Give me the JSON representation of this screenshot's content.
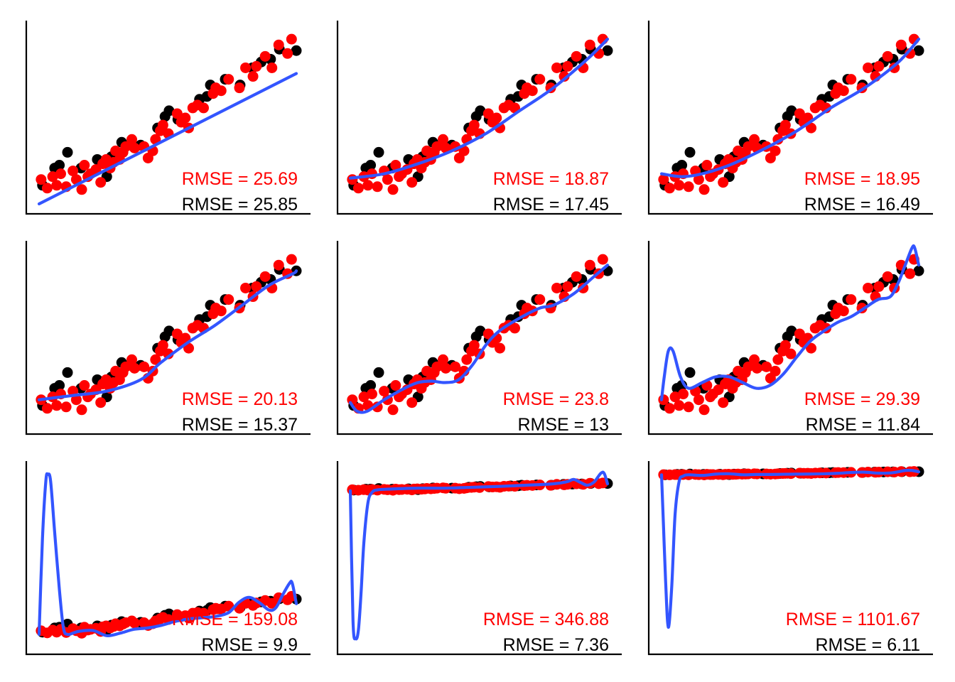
{
  "chart_data": {
    "type": "scatter",
    "layout": "3x3 grid of small multiples, no ticks, no axis labels",
    "colors": {
      "train": "#000000",
      "test": "#ff0000",
      "fit": "#3355ff"
    },
    "train_points": {
      "x": [
        0.5,
        2.3,
        3.0,
        4.2,
        6.2,
        8.6,
        10.0,
        10.7,
        12.2,
        15.0,
        17.5,
        18.6,
        19.2,
        20.5,
        23.7,
        24.8,
        25.3,
        27.5,
        29.7,
        31.5,
        32.8,
        34.2,
        35.5,
        38.0
      ],
      "y": [
        10,
        22,
        24,
        33,
        22,
        28,
        16,
        30,
        40,
        38,
        50,
        58,
        62,
        56,
        70,
        72,
        80,
        84,
        80,
        92,
        96,
        98,
        105,
        104
      ]
    },
    "test_points": {
      "x": [
        0.3,
        1.2,
        2.0,
        2.6,
        3.2,
        4.0,
        5.0,
        5.5,
        6.3,
        6.7,
        7.2,
        7.6,
        8.4,
        9.1,
        9.4,
        9.9,
        10.5,
        11.0,
        11.3,
        11.9,
        12.4,
        12.8,
        13.7,
        14.1,
        15.5,
        16.1,
        16.8,
        17.2,
        17.9,
        18.3,
        19.1,
        20.4,
        21.0,
        21.6,
        22.1,
        22.7,
        23.4,
        24.3,
        25.7,
        26.1,
        26.9,
        28.0,
        29.6,
        30.5,
        31.6,
        32.1,
        33.4,
        34.4,
        35.4,
        36.7,
        37.3
      ],
      "y": [
        14,
        8,
        16,
        10,
        18,
        9,
        20,
        14,
        7,
        24,
        16,
        18,
        21,
        12,
        25,
        28,
        22,
        26,
        34,
        28,
        33,
        37,
        42,
        36,
        37,
        29,
        34,
        42,
        48,
        52,
        46,
        60,
        54,
        57,
        50,
        64,
        66,
        64,
        74,
        78,
        76,
        84,
        78,
        92,
        86,
        93,
        100,
        92,
        108,
        102,
        112
      ]
    },
    "panels": [
      {
        "row": 1,
        "col": 1,
        "rmse_test": "RMSE = 25.69",
        "rmse_train": "RMSE = 25.85",
        "fit_x": [
          0,
          38
        ],
        "fit_y": [
          -3,
          88
        ],
        "ylim": [
          -5,
          120
        ]
      },
      {
        "row": 1,
        "col": 2,
        "rmse_test": "RMSE = 18.87",
        "rmse_train": "RMSE = 17.45",
        "fit_x": [
          0,
          5,
          10,
          15,
          20,
          25,
          30,
          35,
          38
        ],
        "fit_y": [
          15,
          18,
          25,
          34,
          46,
          62,
          78,
          98,
          112
        ],
        "ylim": [
          -5,
          120
        ]
      },
      {
        "row": 1,
        "col": 3,
        "rmse_test": "RMSE = 18.95",
        "rmse_train": "RMSE = 16.49",
        "fit_x": [
          0,
          3,
          6,
          10,
          15,
          20,
          25,
          30,
          35,
          38
        ],
        "fit_y": [
          18,
          16,
          18,
          24,
          35,
          48,
          64,
          78,
          96,
          112
        ],
        "ylim": [
          -5,
          120
        ]
      },
      {
        "row": 2,
        "col": 1,
        "rmse_test": "RMSE = 20.13",
        "rmse_train": "RMSE = 15.37",
        "fit_x": [
          0,
          5,
          10,
          15,
          18,
          22,
          26,
          30,
          34,
          37.5,
          38
        ],
        "fit_y": [
          14,
          17,
          20,
          28,
          40,
          54,
          66,
          80,
          94,
          102,
          104
        ],
        "ylim": [
          -5,
          120
        ]
      },
      {
        "row": 2,
        "col": 2,
        "rmse_test": "RMSE = 23.8",
        "rmse_train": "RMSE = 13",
        "fit_x": [
          0,
          1,
          2.5,
          5,
          8,
          10,
          12,
          14,
          16,
          18,
          20,
          22,
          25,
          28,
          30,
          33,
          36,
          38
        ],
        "fit_y": [
          12,
          6,
          6,
          14,
          22,
          26,
          27,
          26,
          28,
          38,
          52,
          62,
          71,
          78,
          80,
          88,
          100,
          108
        ],
        "ylim": [
          -5,
          120
        ]
      },
      {
        "row": 2,
        "col": 3,
        "rmse_test": "RMSE = 29.39",
        "rmse_train": "RMSE = 11.84",
        "fit_x": [
          0,
          0.4,
          1.0,
          1.7,
          2.8,
          4.0,
          6.0,
          8.0,
          10.0,
          12.0,
          14.0,
          16.0,
          18.0,
          20.0,
          22.0,
          24.0,
          26.0,
          28.0,
          30.0,
          32.0,
          33.8,
          35.0,
          36.0,
          37.0,
          37.4,
          38.0
        ],
        "fit_y": [
          14,
          30,
          48,
          48,
          30,
          22,
          26,
          30,
          30,
          26,
          22,
          24,
          32,
          44,
          55,
          62,
          68,
          72,
          78,
          84,
          86,
          96,
          108,
          120,
          120,
          108
        ],
        "ylim": [
          -5,
          120
        ]
      },
      {
        "row": 3,
        "col": 1,
        "rmse_test": "RMSE = 159.08",
        "rmse_train": "RMSE = 9.9",
        "fit_x": [
          0,
          0.5,
          1.0,
          1.3,
          1.7,
          2.3,
          3.0,
          3.6,
          4.2,
          5.0,
          6.0,
          8.0,
          10.0,
          12.0,
          14.0,
          16.0,
          18.0,
          20.0,
          22.0,
          24.0,
          26.0,
          28.0,
          29.5,
          31.0,
          32.5,
          34.0,
          35.0,
          36.0,
          37.0,
          37.4,
          38.0
        ],
        "fit_y": [
          -10,
          140,
          230,
          240,
          230,
          150,
          60,
          0,
          -10,
          -8,
          -5,
          -4,
          -12,
          -8,
          -2,
          0,
          4,
          10,
          14,
          16,
          18,
          24,
          40,
          48,
          40,
          28,
          32,
          52,
          70,
          70,
          38
        ],
        "ylim": [
          -30,
          250
        ]
      },
      {
        "row": 3,
        "col": 2,
        "rmse_test": "RMSE = 346.88",
        "rmse_train": "RMSE = 7.36",
        "fit_x": [
          0,
          0.4,
          0.8,
          1.2,
          1.6,
          2.0,
          2.6,
          3.2,
          4.0,
          6.0,
          10.0,
          14.0,
          18.0,
          22.0,
          26.0,
          30.0,
          32.0,
          33.0,
          34.0,
          35.0,
          36.0,
          37.0,
          37.5,
          38.0
        ],
        "fit_y": [
          200,
          -550,
          -650,
          -600,
          -380,
          -100,
          130,
          190,
          205,
          210,
          215,
          215,
          220,
          225,
          232,
          240,
          252,
          265,
          248,
          232,
          250,
          300,
          300,
          240
        ],
        "ylim": [
          -700,
          330
        ]
      },
      {
        "row": 3,
        "col": 3,
        "rmse_test": "RMSE = 1101.67",
        "rmse_train": "RMSE = 6.11",
        "fit_x": [
          0,
          0.3,
          0.6,
          1.0,
          1.5,
          2.0,
          2.6,
          3.2,
          4.0,
          6.0,
          8.0,
          10.0,
          12.0,
          14.0,
          16.0,
          18.0,
          20.0,
          22.0,
          24.0,
          26.0,
          28.0,
          30.0,
          32.0,
          34.0,
          36.0,
          37.0,
          38.0
        ],
        "fit_y": [
          200,
          -600,
          -1400,
          -2100,
          -1500,
          -400,
          100,
          180,
          200,
          190,
          210,
          215,
          200,
          205,
          205,
          208,
          210,
          212,
          215,
          222,
          235,
          240,
          225,
          230,
          265,
          265,
          245
        ],
        "ylim": [
          -2400,
          300
        ]
      }
    ]
  }
}
